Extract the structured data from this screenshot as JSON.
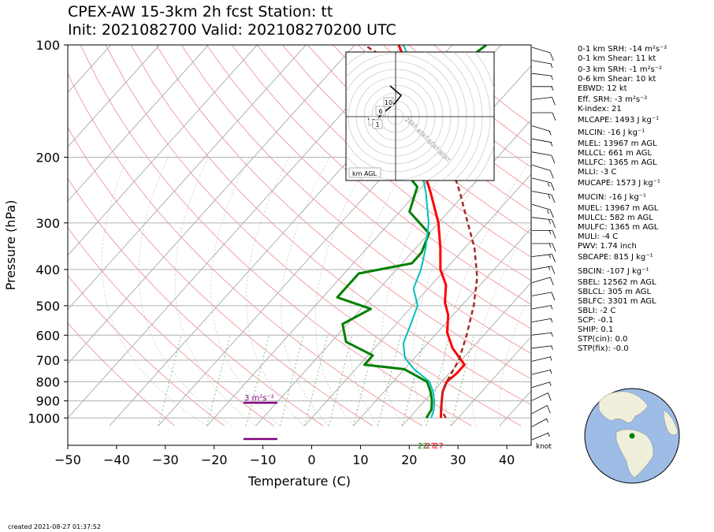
{
  "title_line1": "CPEX-AW 15-3km  2h fcst  Station: tt",
  "title_line2": "Init: 2021082700  Valid: 202108270200 UTC",
  "created": "created 2021-08-27 01:37:52",
  "colors": {
    "temperature": "#ff0000",
    "dewpoint": "#008000",
    "wetbulb": "#00bfbf",
    "parcel": "#a52a2a",
    "helicity": "#800080",
    "isobar": "#b0b0b0",
    "dry_adiabat": "#f4a0a0",
    "mixing_ratio": "#7fc07f",
    "hodograph": "#000000"
  },
  "chart_data": {
    "type": "line",
    "title": "CPEX-AW 15-3km  2h fcst  Station: tt",
    "xlabel": "Temperature (C)",
    "ylabel": "Pressure (hPa)",
    "xlim": [
      -50,
      45
    ],
    "ylim": [
      1050,
      100
    ],
    "y_scale": "log",
    "xticks": [
      "−50",
      "−40",
      "−30",
      "−20",
      "−10",
      "0",
      "10",
      "20",
      "30",
      "40"
    ],
    "yticks": [
      "100",
      "200",
      "300",
      "400",
      "500",
      "600",
      "700",
      "800",
      "900",
      "1000"
    ],
    "grid": true,
    "series": [
      {
        "name": "Temperature",
        "points": [
          [
            26.5,
            1000
          ],
          [
            25,
            950
          ],
          [
            23.5,
            900
          ],
          [
            22,
            850
          ],
          [
            21,
            800
          ],
          [
            21.5,
            760
          ],
          [
            21.5,
            720
          ],
          [
            20,
            700
          ],
          [
            16,
            650
          ],
          [
            12,
            590
          ],
          [
            9,
            530
          ],
          [
            6,
            490
          ],
          [
            3,
            440
          ],
          [
            -1,
            400
          ],
          [
            -5,
            350
          ],
          [
            -10,
            300
          ],
          [
            -17,
            250
          ],
          [
            -26,
            200
          ],
          [
            -37,
            150
          ],
          [
            -43,
            120
          ],
          [
            -51,
            100
          ]
        ]
      },
      {
        "name": "Dewpoint",
        "points": [
          [
            23.5,
            1000
          ],
          [
            23,
            950
          ],
          [
            21.5,
            900
          ],
          [
            19.5,
            850
          ],
          [
            17,
            800
          ],
          [
            10,
            740
          ],
          [
            1,
            720
          ],
          [
            1,
            680
          ],
          [
            -7,
            625
          ],
          [
            -11,
            560
          ],
          [
            -8,
            510
          ],
          [
            -17,
            475
          ],
          [
            -17,
            410
          ],
          [
            -8,
            385
          ],
          [
            -8,
            360
          ],
          [
            -10,
            320
          ],
          [
            -18,
            280
          ],
          [
            -21,
            240
          ],
          [
            -26,
            220
          ],
          [
            -26,
            190
          ],
          [
            -34,
            175
          ],
          [
            -35,
            150
          ],
          [
            -36,
            130
          ],
          [
            -35,
            115
          ],
          [
            -33,
            100
          ]
        ]
      },
      {
        "name": "Wet-bulb",
        "points": [
          [
            24.5,
            1000
          ],
          [
            23.5,
            950
          ],
          [
            22,
            900
          ],
          [
            20,
            850
          ],
          [
            17.5,
            800
          ],
          [
            12,
            740
          ],
          [
            8,
            690
          ],
          [
            5,
            630
          ],
          [
            3,
            560
          ],
          [
            1,
            500
          ],
          [
            -3,
            450
          ],
          [
            -5,
            400
          ],
          [
            -8,
            350
          ],
          [
            -12,
            300
          ],
          [
            -18,
            250
          ],
          [
            -26,
            200
          ],
          [
            -36,
            150
          ],
          [
            -42,
            120
          ],
          [
            -50,
            100
          ]
        ]
      },
      {
        "name": "Parcel",
        "points": [
          [
            27.5,
            1000
          ],
          [
            25,
            950
          ],
          [
            23.5,
            900
          ],
          [
            22,
            850
          ],
          [
            21,
            800
          ],
          [
            19.5,
            700
          ],
          [
            16.5,
            600
          ],
          [
            12.5,
            500
          ],
          [
            8,
            420
          ],
          [
            2,
            350
          ],
          [
            -4,
            300
          ],
          [
            -11,
            250
          ],
          [
            -20,
            200
          ],
          [
            -33,
            150
          ],
          [
            -43,
            120
          ],
          [
            -58,
            100
          ]
        ]
      }
    ],
    "helicity_labels": [
      "3 m²s⁻²"
    ],
    "surface_labels": [
      "22",
      "27",
      "27"
    ],
    "wind_unit": "knot",
    "hodograph": {
      "box_label": "km AGL",
      "ring_labels": [
        "20kt",
        "40kt",
        "60kt",
        "80kt"
      ],
      "height_labels": [
        "10",
        "6",
        "2",
        "1"
      ],
      "trace": [
        [
          -5,
          -1
        ],
        [
          -4,
          -2
        ],
        [
          -3,
          0
        ],
        [
          -2,
          2
        ],
        [
          -1,
          4
        ],
        [
          0,
          6
        ],
        [
          1,
          9
        ],
        [
          0,
          11
        ],
        [
          -1,
          13
        ]
      ]
    },
    "wind_barbs": [
      [
        10,
        -5
      ],
      [
        5,
        -3
      ],
      [
        5,
        -2
      ],
      [
        5,
        0
      ],
      [
        10,
        2
      ],
      [
        10,
        0
      ],
      [
        5,
        -5
      ],
      [
        5,
        -3
      ],
      [
        10,
        -3
      ],
      [
        10,
        -5
      ],
      [
        15,
        -4
      ],
      [
        15,
        -3
      ],
      [
        15,
        -5
      ],
      [
        15,
        -2
      ],
      [
        15,
        0
      ],
      [
        15,
        0
      ],
      [
        15,
        2
      ],
      [
        15,
        3
      ],
      [
        10,
        5
      ],
      [
        10,
        3
      ],
      [
        5,
        3
      ],
      [
        5,
        3
      ],
      [
        5,
        2
      ],
      [
        5,
        2
      ],
      [
        5,
        4
      ],
      [
        5,
        4
      ],
      [
        5,
        5
      ],
      [
        10,
        8
      ],
      [
        10,
        9
      ],
      [
        5,
        9
      ],
      [
        5,
        7
      ]
    ]
  },
  "indices": [
    "0-1 km SRH: -14 m²s⁻²",
    "0-1 km Shear: 11 kt",
    "0-3 km SRH: -1 m²s⁻²",
    "0-6 km Shear: 10 kt",
    "EBWD: 12 kt",
    "Eff. SRH: -3 m²s⁻²",
    "K-index: 21",
    "MLCAPE: 1493 J kg⁻¹",
    "MLCIN: -16 J kg⁻¹",
    "MLEL: 13967 m AGL",
    "MLLCL: 661 m AGL",
    "MLLFC: 1365 m AGL",
    "MLLI: -3 C",
    "MUCAPE: 1573 J kg⁻¹",
    "MUCIN: -16 J kg⁻¹",
    "MUEL: 13967 m AGL",
    "MULCL: 582 m AGL",
    "MULFC: 1365 m AGL",
    "MULI: -4 C",
    "PWV: 1.74 inch",
    "SBCAPE: 815 J kg⁻¹",
    "SBCIN: -107 J kg⁻¹",
    "SBEL: 12562 m AGL",
    "SBLCL: 305 m AGL",
    "SBLFC: 3301 m AGL",
    "SBLI: -2 C",
    "SCP: -0.1",
    "SHIP: 0.1",
    "STP(cin): 0.0",
    "STP(fix): -0.0"
  ]
}
